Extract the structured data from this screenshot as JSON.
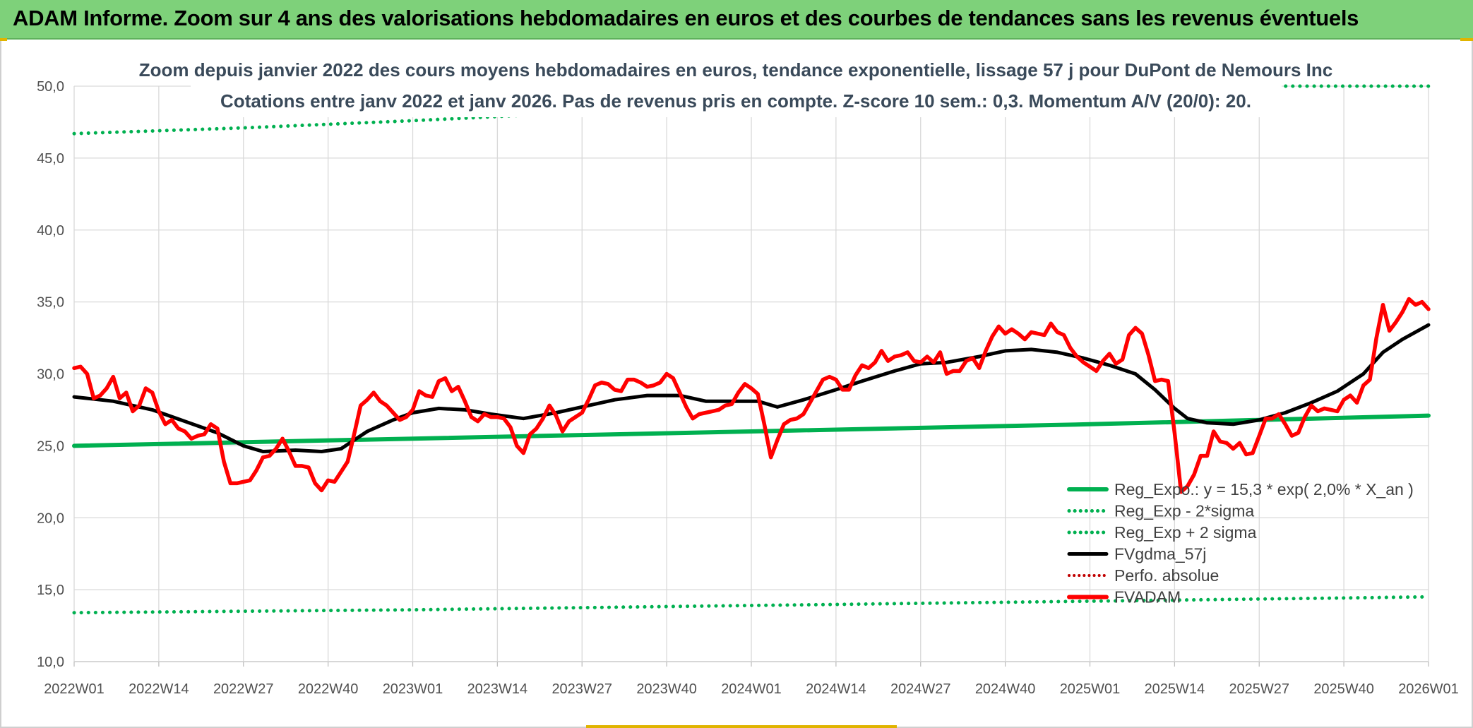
{
  "header": {
    "title": "ADAM Informe. Zoom sur 4 ans des valorisations hebdomadaires en euros et des courbes de tendances sans les revenus éventuels"
  },
  "colors": {
    "header_bg": "#7ed17a",
    "regression": "#00b050",
    "fvgdma": "#000000",
    "fvadam": "#ff0000",
    "perfo": "#c00000"
  },
  "chart_data": {
    "type": "line",
    "title": "Zoom depuis janvier 2022 des cours moyens hebdomadaires en euros, tendance exponentielle, lissage 57 j pour DuPont de Nemours Inc",
    "subtitle": "Cotations entre janv 2022 et janv 2026. Pas de revenus pris en compte. Z-score 10 sem.: 0,3. Momentum A/V (20/0): 20.",
    "xlabel": "",
    "ylabel": "",
    "ylim": [
      10,
      50
    ],
    "yticks": [
      "10,0",
      "15,0",
      "20,0",
      "25,0",
      "30,0",
      "35,0",
      "40,0",
      "45,0",
      "50,0"
    ],
    "x_tick_labels": [
      "2022W01",
      "2022W14",
      "2022W27",
      "2022W40",
      "2023W01",
      "2023W14",
      "2023W27",
      "2023W40",
      "2024W01",
      "2024W14",
      "2024W27",
      "2024W40",
      "2025W01",
      "2025W14",
      "2025W27",
      "2025W40",
      "2026W01"
    ],
    "x_tick_weeks": [
      0,
      13,
      26,
      39,
      52,
      65,
      78,
      91,
      104,
      117,
      130,
      143,
      156,
      169,
      182,
      195,
      208
    ],
    "grid": true,
    "legend_position": "bottom-right",
    "series": [
      {
        "name": "Reg_Expo.: y = 15,3 * exp( 2,0% *  X_an )",
        "style": "solid",
        "points": [
          [
            0,
            25.0
          ],
          [
            52,
            25.5
          ],
          [
            104,
            26.0
          ],
          [
            156,
            26.5
          ],
          [
            208,
            27.1
          ]
        ]
      },
      {
        "name": "Reg_Exp - 2*sigma",
        "style": "dotted",
        "points": [
          [
            0,
            13.4
          ],
          [
            52,
            13.6
          ],
          [
            104,
            13.9
          ],
          [
            156,
            14.2
          ],
          [
            208,
            14.5
          ]
        ]
      },
      {
        "name": "Reg_Exp + 2 sigma",
        "style": "dotted",
        "points": [
          [
            0,
            46.7
          ],
          [
            26,
            47.1
          ],
          [
            52,
            47.6
          ],
          [
            70,
            48.0
          ],
          [
            185,
            50.0
          ],
          [
            208,
            50.0
          ]
        ]
      },
      {
        "name": "FVgdma_57j",
        "style": "solid",
        "points": [
          [
            0,
            28.4
          ],
          [
            6,
            28.1
          ],
          [
            12,
            27.5
          ],
          [
            17,
            26.7
          ],
          [
            22,
            25.9
          ],
          [
            26,
            25.0
          ],
          [
            29,
            24.6
          ],
          [
            34,
            24.7
          ],
          [
            38,
            24.6
          ],
          [
            41,
            24.8
          ],
          [
            45,
            26.0
          ],
          [
            49,
            26.8
          ],
          [
            52,
            27.3
          ],
          [
            56,
            27.6
          ],
          [
            60,
            27.5
          ],
          [
            64,
            27.2
          ],
          [
            69,
            26.9
          ],
          [
            74,
            27.3
          ],
          [
            79,
            27.8
          ],
          [
            83,
            28.2
          ],
          [
            88,
            28.5
          ],
          [
            93,
            28.5
          ],
          [
            97,
            28.1
          ],
          [
            101,
            28.1
          ],
          [
            105,
            28.1
          ],
          [
            108,
            27.7
          ],
          [
            112,
            28.2
          ],
          [
            117,
            28.9
          ],
          [
            121,
            29.5
          ],
          [
            126,
            30.2
          ],
          [
            130,
            30.7
          ],
          [
            134,
            30.8
          ],
          [
            139,
            31.2
          ],
          [
            143,
            31.6
          ],
          [
            147,
            31.7
          ],
          [
            151,
            31.5
          ],
          [
            155,
            31.1
          ],
          [
            159,
            30.6
          ],
          [
            163,
            30.0
          ],
          [
            166,
            28.9
          ],
          [
            169,
            27.6
          ],
          [
            171,
            26.9
          ],
          [
            174,
            26.6
          ],
          [
            178,
            26.5
          ],
          [
            182,
            26.8
          ],
          [
            186,
            27.3
          ],
          [
            190,
            28.0
          ],
          [
            194,
            28.8
          ],
          [
            198,
            30.0
          ],
          [
            201,
            31.5
          ],
          [
            204,
            32.4
          ],
          [
            208,
            33.4
          ]
        ]
      },
      {
        "name": "Perfo. absolue",
        "style": "dotted",
        "points": []
      },
      {
        "name": "FVADAM",
        "style": "solid",
        "points": [
          [
            0,
            30.4
          ],
          [
            1,
            30.5
          ],
          [
            2,
            30.0
          ],
          [
            3,
            28.3
          ],
          [
            4,
            28.5
          ],
          [
            5,
            29.0
          ],
          [
            6,
            29.8
          ],
          [
            7,
            28.3
          ],
          [
            8,
            28.7
          ],
          [
            9,
            27.4
          ],
          [
            10,
            27.8
          ],
          [
            11,
            29.0
          ],
          [
            12,
            28.7
          ],
          [
            13,
            27.4
          ],
          [
            14,
            26.5
          ],
          [
            15,
            26.8
          ],
          [
            16,
            26.2
          ],
          [
            17,
            26.0
          ],
          [
            18,
            25.5
          ],
          [
            19,
            25.7
          ],
          [
            20,
            25.8
          ],
          [
            21,
            26.5
          ],
          [
            22,
            26.2
          ],
          [
            23,
            23.9
          ],
          [
            24,
            22.4
          ],
          [
            25,
            22.4
          ],
          [
            26,
            22.5
          ],
          [
            27,
            22.6
          ],
          [
            28,
            23.3
          ],
          [
            29,
            24.2
          ],
          [
            30,
            24.3
          ],
          [
            31,
            24.8
          ],
          [
            32,
            25.5
          ],
          [
            33,
            24.6
          ],
          [
            34,
            23.6
          ],
          [
            35,
            23.6
          ],
          [
            36,
            23.5
          ],
          [
            37,
            22.4
          ],
          [
            38,
            21.9
          ],
          [
            39,
            22.6
          ],
          [
            40,
            22.5
          ],
          [
            41,
            23.2
          ],
          [
            42,
            23.9
          ],
          [
            43,
            25.8
          ],
          [
            44,
            27.8
          ],
          [
            45,
            28.2
          ],
          [
            46,
            28.7
          ],
          [
            47,
            28.1
          ],
          [
            48,
            27.8
          ],
          [
            49,
            27.3
          ],
          [
            50,
            26.8
          ],
          [
            51,
            27.0
          ],
          [
            52,
            27.5
          ],
          [
            53,
            28.8
          ],
          [
            54,
            28.5
          ],
          [
            55,
            28.4
          ],
          [
            56,
            29.5
          ],
          [
            57,
            29.7
          ],
          [
            58,
            28.8
          ],
          [
            59,
            29.1
          ],
          [
            60,
            28.1
          ],
          [
            61,
            27.0
          ],
          [
            62,
            26.7
          ],
          [
            63,
            27.2
          ],
          [
            64,
            27.0
          ],
          [
            65,
            27.0
          ],
          [
            66,
            26.9
          ],
          [
            67,
            26.3
          ],
          [
            68,
            25.0
          ],
          [
            69,
            24.5
          ],
          [
            70,
            25.8
          ],
          [
            71,
            26.2
          ],
          [
            72,
            26.9
          ],
          [
            73,
            27.8
          ],
          [
            74,
            27.1
          ],
          [
            75,
            26.0
          ],
          [
            76,
            26.7
          ],
          [
            77,
            27.0
          ],
          [
            78,
            27.3
          ],
          [
            79,
            28.2
          ],
          [
            80,
            29.2
          ],
          [
            81,
            29.4
          ],
          [
            82,
            29.3
          ],
          [
            83,
            28.9
          ],
          [
            84,
            28.8
          ],
          [
            85,
            29.6
          ],
          [
            86,
            29.6
          ],
          [
            87,
            29.4
          ],
          [
            88,
            29.1
          ],
          [
            89,
            29.2
          ],
          [
            90,
            29.4
          ],
          [
            91,
            30.0
          ],
          [
            92,
            29.7
          ],
          [
            93,
            28.7
          ],
          [
            94,
            27.7
          ],
          [
            95,
            26.9
          ],
          [
            96,
            27.2
          ],
          [
            97,
            27.3
          ],
          [
            98,
            27.4
          ],
          [
            99,
            27.5
          ],
          [
            100,
            27.8
          ],
          [
            101,
            27.9
          ],
          [
            102,
            28.7
          ],
          [
            103,
            29.3
          ],
          [
            104,
            29.0
          ],
          [
            105,
            28.6
          ],
          [
            106,
            26.5
          ],
          [
            107,
            24.2
          ],
          [
            108,
            25.4
          ],
          [
            109,
            26.5
          ],
          [
            110,
            26.8
          ],
          [
            111,
            26.9
          ],
          [
            112,
            27.2
          ],
          [
            113,
            28.0
          ],
          [
            114,
            28.8
          ],
          [
            115,
            29.6
          ],
          [
            116,
            29.8
          ],
          [
            117,
            29.6
          ],
          [
            118,
            28.9
          ],
          [
            119,
            28.9
          ],
          [
            120,
            29.9
          ],
          [
            121,
            30.6
          ],
          [
            122,
            30.4
          ],
          [
            123,
            30.8
          ],
          [
            124,
            31.6
          ],
          [
            125,
            30.9
          ],
          [
            126,
            31.2
          ],
          [
            127,
            31.3
          ],
          [
            128,
            31.5
          ],
          [
            129,
            30.9
          ],
          [
            130,
            30.8
          ],
          [
            131,
            31.2
          ],
          [
            132,
            30.8
          ],
          [
            133,
            31.5
          ],
          [
            134,
            30.0
          ],
          [
            135,
            30.2
          ],
          [
            136,
            30.2
          ],
          [
            137,
            30.9
          ],
          [
            138,
            31.1
          ],
          [
            139,
            30.4
          ],
          [
            140,
            31.6
          ],
          [
            141,
            32.6
          ],
          [
            142,
            33.3
          ],
          [
            143,
            32.8
          ],
          [
            144,
            33.1
          ],
          [
            145,
            32.8
          ],
          [
            146,
            32.4
          ],
          [
            147,
            32.9
          ],
          [
            148,
            32.8
          ],
          [
            149,
            32.7
          ],
          [
            150,
            33.5
          ],
          [
            151,
            32.9
          ],
          [
            152,
            32.7
          ],
          [
            153,
            31.8
          ],
          [
            154,
            31.2
          ],
          [
            155,
            30.8
          ],
          [
            156,
            30.5
          ],
          [
            157,
            30.2
          ],
          [
            158,
            30.9
          ],
          [
            159,
            31.4
          ],
          [
            160,
            30.7
          ],
          [
            161,
            31.0
          ],
          [
            162,
            32.7
          ],
          [
            163,
            33.2
          ],
          [
            164,
            32.8
          ],
          [
            165,
            31.3
          ],
          [
            166,
            29.5
          ],
          [
            167,
            29.6
          ],
          [
            168,
            29.5
          ],
          [
            169,
            25.9
          ],
          [
            170,
            21.8
          ],
          [
            171,
            22.2
          ],
          [
            172,
            23.0
          ],
          [
            173,
            24.3
          ],
          [
            174,
            24.3
          ],
          [
            175,
            26.0
          ],
          [
            176,
            25.3
          ],
          [
            177,
            25.2
          ],
          [
            178,
            24.8
          ],
          [
            179,
            25.2
          ],
          [
            180,
            24.4
          ],
          [
            181,
            24.5
          ],
          [
            182,
            25.7
          ],
          [
            183,
            26.9
          ],
          [
            184,
            26.9
          ],
          [
            185,
            27.2
          ],
          [
            186,
            26.5
          ],
          [
            187,
            25.7
          ],
          [
            188,
            25.9
          ],
          [
            189,
            27.0
          ],
          [
            190,
            27.8
          ],
          [
            191,
            27.4
          ],
          [
            192,
            27.6
          ],
          [
            193,
            27.5
          ],
          [
            194,
            27.4
          ],
          [
            195,
            28.2
          ],
          [
            196,
            28.5
          ],
          [
            197,
            28.0
          ],
          [
            198,
            29.2
          ],
          [
            199,
            29.6
          ],
          [
            200,
            32.5
          ],
          [
            201,
            34.8
          ],
          [
            202,
            33.0
          ],
          [
            203,
            33.6
          ],
          [
            204,
            34.3
          ],
          [
            205,
            35.2
          ],
          [
            206,
            34.8
          ],
          [
            207,
            35.0
          ],
          [
            208,
            34.5
          ]
        ]
      }
    ]
  }
}
